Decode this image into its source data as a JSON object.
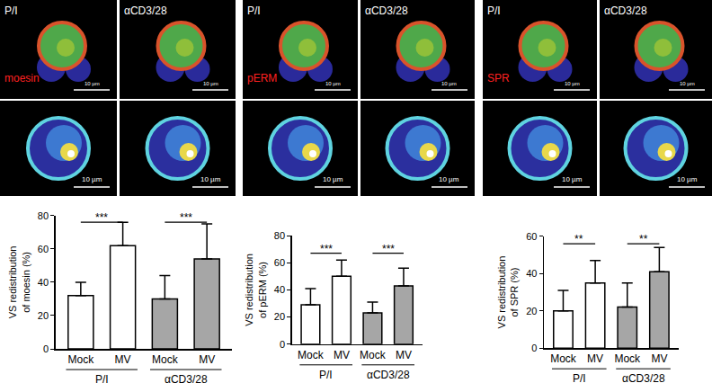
{
  "panels": [
    {
      "stain": "moesin",
      "stimuli": [
        "P/I",
        "αCD3/28"
      ],
      "scale_bar": "10 µm"
    },
    {
      "stain": "pERM",
      "stimuli": [
        "P/I",
        "αCD3/28"
      ],
      "scale_bar": "10 µm"
    },
    {
      "stain": "SPR",
      "stimuli": [
        "P/I",
        "αCD3/28"
      ],
      "scale_bar": "10 µm"
    }
  ],
  "chart_data": [
    {
      "type": "bar",
      "y_label_lines": [
        "VS redistribution",
        "of moesin (%)"
      ],
      "categories": [
        "Mock",
        "MV",
        "Mock",
        "MV"
      ],
      "values": [
        32,
        62,
        30,
        54
      ],
      "errors": [
        8,
        14,
        14,
        21
      ],
      "colors": [
        "#ffffff",
        "#ffffff",
        "#a6a6a6",
        "#a6a6a6"
      ],
      "groups": [
        {
          "label": "P/I",
          "span": [
            0,
            1
          ]
        },
        {
          "label": "αCD3/28",
          "span": [
            2,
            3
          ]
        }
      ],
      "significance": [
        {
          "span": [
            0,
            1
          ],
          "y": 76,
          "label": "***"
        },
        {
          "span": [
            2,
            3
          ],
          "y": 76,
          "label": "***"
        }
      ],
      "ylim": [
        0,
        80
      ],
      "yticks": [
        0,
        20,
        40,
        60,
        80
      ],
      "grid": false
    },
    {
      "type": "bar",
      "y_label_lines": [
        "VS redistribution",
        "of pERM (%)"
      ],
      "categories": [
        "Mock",
        "MV",
        "Mock",
        "MV"
      ],
      "values": [
        29,
        50,
        23,
        43
      ],
      "errors": [
        12,
        12,
        8,
        13
      ],
      "colors": [
        "#ffffff",
        "#ffffff",
        "#a6a6a6",
        "#a6a6a6"
      ],
      "groups": [
        {
          "label": "P/I",
          "span": [
            0,
            1
          ]
        },
        {
          "label": "αCD3/28",
          "span": [
            2,
            3
          ]
        }
      ],
      "significance": [
        {
          "span": [
            0,
            1
          ],
          "y": 67,
          "label": "***"
        },
        {
          "span": [
            2,
            3
          ],
          "y": 67,
          "label": "***"
        }
      ],
      "ylim": [
        0,
        80
      ],
      "yticks": [
        0,
        20,
        40,
        60,
        80
      ],
      "grid": false
    },
    {
      "type": "bar",
      "y_label_lines": [
        "VS redistribution",
        "of SPR (%)"
      ],
      "categories": [
        "Mock",
        "MV",
        "Mock",
        "MV"
      ],
      "values": [
        20,
        35,
        22,
        41
      ],
      "errors": [
        11,
        12,
        13,
        13
      ],
      "colors": [
        "#ffffff",
        "#ffffff",
        "#a6a6a6",
        "#a6a6a6"
      ],
      "groups": [
        {
          "label": "P/I",
          "span": [
            0,
            1
          ]
        },
        {
          "label": "αCD3/28",
          "span": [
            2,
            3
          ]
        }
      ],
      "significance": [
        {
          "span": [
            0,
            1
          ],
          "y": 56,
          "label": "**"
        },
        {
          "span": [
            2,
            3
          ],
          "y": 56,
          "label": "**"
        }
      ],
      "ylim": [
        0,
        60
      ],
      "yticks": [
        0,
        20,
        40,
        60
      ],
      "grid": false
    }
  ]
}
